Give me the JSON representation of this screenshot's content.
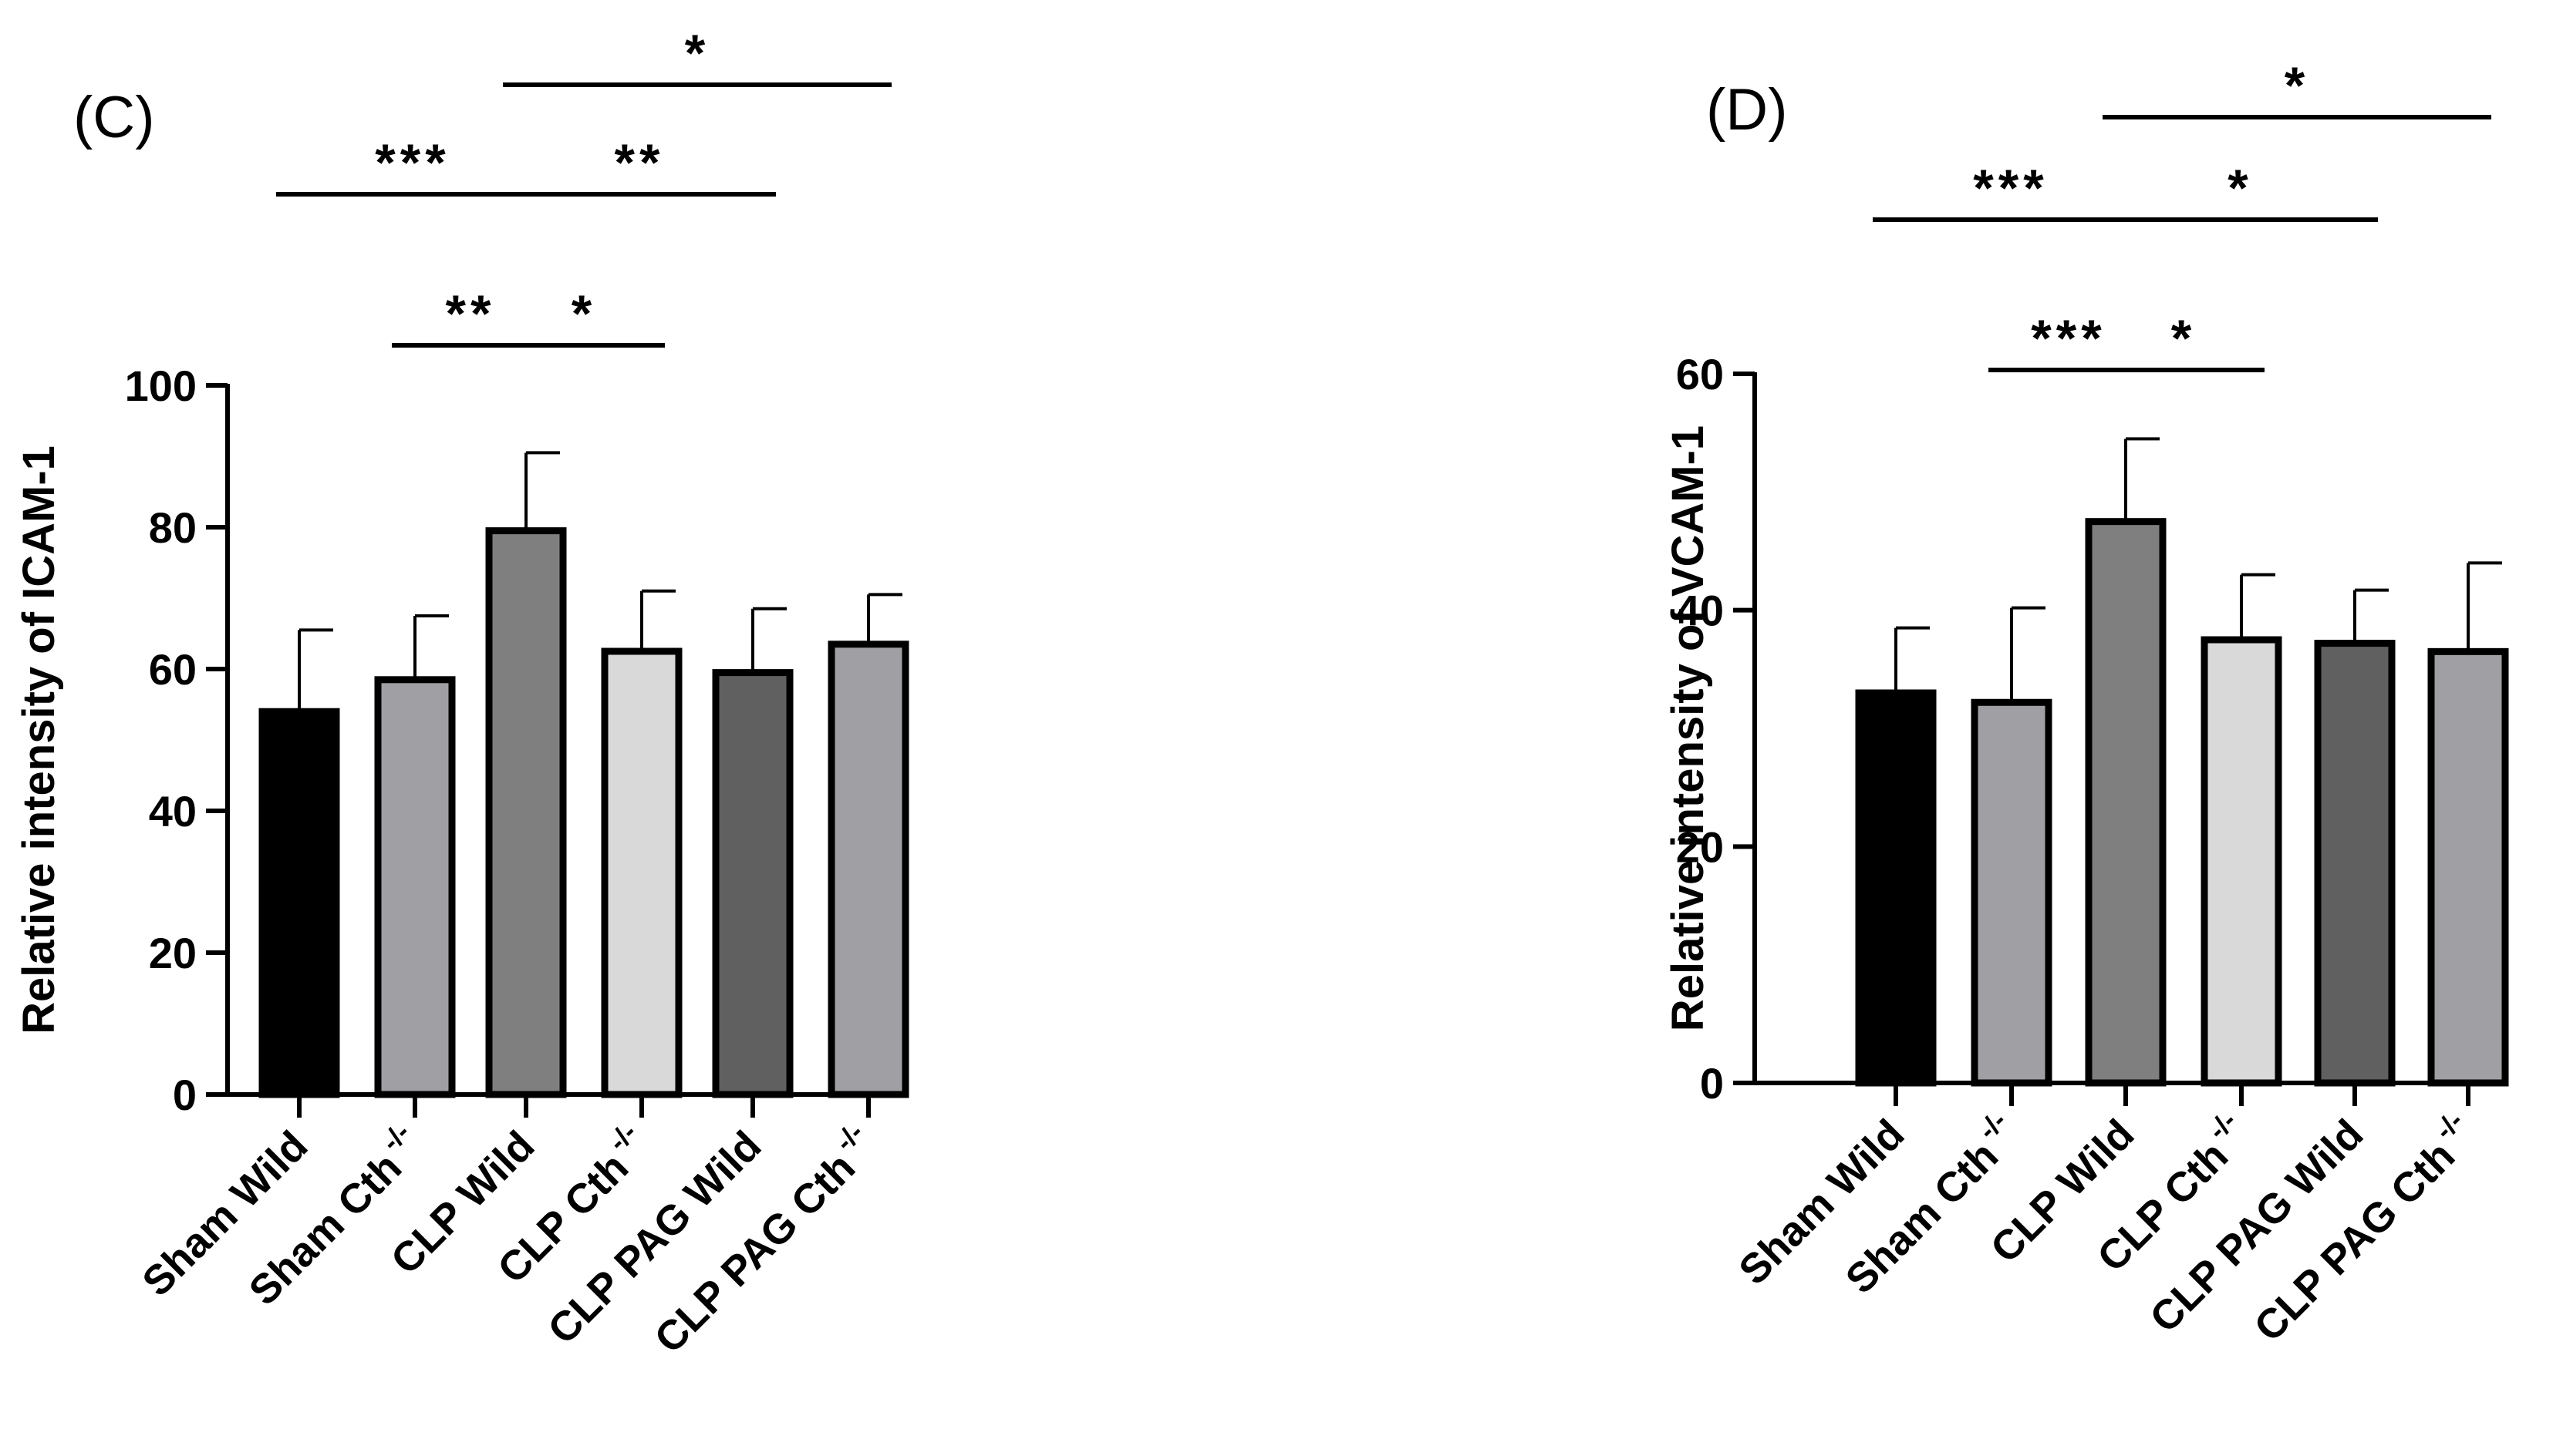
{
  "chart_data": [
    {
      "type": "bar",
      "panel": "(C)",
      "title": "",
      "xlabel": "",
      "ylabel": "Relative intensity of ICAM-1",
      "ylim": [
        0,
        100
      ],
      "yticks": [
        "0",
        "20",
        "40",
        "60",
        "80",
        "100"
      ],
      "categories": [
        {
          "base": "Sham Wild",
          "sup": ""
        },
        {
          "base": "Sham Cth",
          "sup": "-/-"
        },
        {
          "base": "CLP Wild",
          "sup": ""
        },
        {
          "base": "CLP Cth",
          "sup": "-/-"
        },
        {
          "base": "CLP PAG Wild",
          "sup": ""
        },
        {
          "base": "CLP PAG Cth",
          "sup": "-/-"
        }
      ],
      "values": [
        54,
        58.5,
        79.5,
        62.5,
        59.5,
        63.5
      ],
      "errors": [
        11.5,
        9,
        11,
        8.5,
        9,
        7
      ],
      "bar_colors": [
        "#000000",
        "#a0a0a4",
        "#7f7f7f",
        "#d9d9d9",
        "#606060",
        "#a0a0a4"
      ],
      "significance": [
        {
          "from": 3,
          "to": 6,
          "label": "*"
        },
        {
          "from": 1,
          "to": 3,
          "label": "***"
        },
        {
          "from": 3,
          "to": 5,
          "label": "**"
        },
        {
          "from": 2,
          "to": 3,
          "label": "**"
        },
        {
          "from": 3,
          "to": 4,
          "label": "*"
        }
      ]
    },
    {
      "type": "bar",
      "panel": "(D)",
      "title": "",
      "xlabel": "",
      "ylabel": "Relative intensity of VCAM-1",
      "ylim": [
        0,
        60
      ],
      "yticks": [
        "0",
        "20",
        "40",
        "60"
      ],
      "categories": [
        {
          "base": "Sham Wild",
          "sup": ""
        },
        {
          "base": "Sham Cth",
          "sup": "-/-"
        },
        {
          "base": "CLP Wild",
          "sup": ""
        },
        {
          "base": "CLP Cth",
          "sup": "-/-"
        },
        {
          "base": "CLP PAG Wild",
          "sup": ""
        },
        {
          "base": "CLP PAG Cth",
          "sup": "-/-"
        }
      ],
      "values": [
        33,
        32.2,
        47.5,
        37.5,
        37.2,
        36.5
      ],
      "errors": [
        5.5,
        8,
        7,
        5.5,
        4.5,
        7.5
      ],
      "bar_colors": [
        "#000000",
        "#a0a0a4",
        "#7f7f7f",
        "#d9d9d9",
        "#606060",
        "#a0a0a4"
      ],
      "significance": [
        {
          "from": 3,
          "to": 6,
          "label": "*"
        },
        {
          "from": 1,
          "to": 3,
          "label": "***"
        },
        {
          "from": 3,
          "to": 5,
          "label": "*"
        },
        {
          "from": 2,
          "to": 3,
          "label": "***"
        },
        {
          "from": 3,
          "to": 4,
          "label": "*"
        }
      ]
    }
  ]
}
